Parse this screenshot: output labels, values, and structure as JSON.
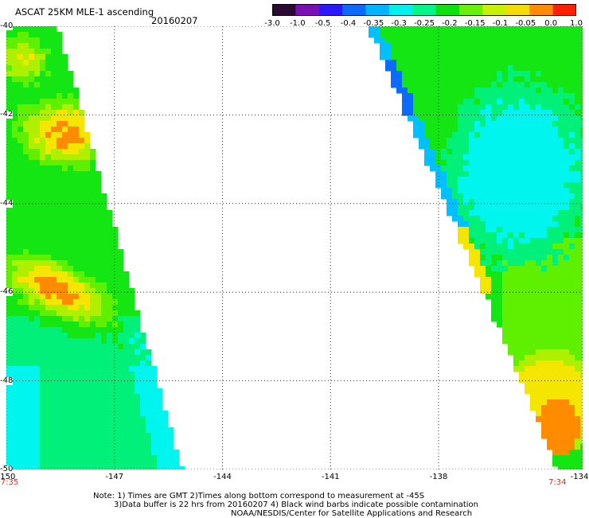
{
  "header": {
    "title": "ASCAT 25KM MLE-1 ascending",
    "date": "20160207"
  },
  "colorbar": {
    "labels": [
      "-3.0",
      "-1.0",
      "-0.5",
      "-0.4",
      "-0.35",
      "-0.3",
      "-0.25",
      "-0.2",
      "-0.15",
      "-0.1",
      "-0.05",
      "0.0",
      "1.0"
    ],
    "colors": [
      "#2a0a33",
      "#7a10b4",
      "#2b18ff",
      "#0b6bff",
      "#00b4ff",
      "#00f0f0",
      "#00f58a",
      "#10e010",
      "#6cef08",
      "#c8f000",
      "#f4dc00",
      "#ff8c00",
      "#ff2000"
    ]
  },
  "map": {
    "lon_range": [
      -150,
      -134
    ],
    "lat_range": [
      -50,
      -40
    ],
    "x_tick_labels": [
      "-150",
      "-147",
      "-144",
      "-141",
      "-138",
      "-134"
    ],
    "x_tick_values": [
      -150,
      -147,
      -144,
      -141,
      -138,
      -134
    ],
    "y_tick_labels": [
      "-40",
      "-42",
      "-44",
      "-46",
      "-48",
      "-50"
    ],
    "y_tick_values": [
      -40,
      -42,
      -44,
      -46,
      -48,
      -50
    ],
    "time_labels": [
      {
        "text": "7:35",
        "lon": -150
      },
      {
        "text": "7:34",
        "lon": -134.7
      }
    ],
    "grid": true,
    "colors": {
      "cyan": "#00f5ee",
      "green_cyan": "#00f07a",
      "green": "#14e614",
      "light_green": "#5ef000",
      "yellow_green": "#aef000",
      "yellow": "#f5e600",
      "orange": "#ff8c00",
      "blue": "#0b6bff",
      "cyan_blue": "#00c0ff"
    }
  },
  "notes": {
    "line1": "Note: 1) Times are GMT 2)Times along bottom correspond to measurement at -45S",
    "line2": "3)Data buffer is 22 hrs from 20160207 4) Black wind barbs indicate possible contamination",
    "line3": "NOAA/NESDIS/Center for Satellite Applications and Research"
  }
}
